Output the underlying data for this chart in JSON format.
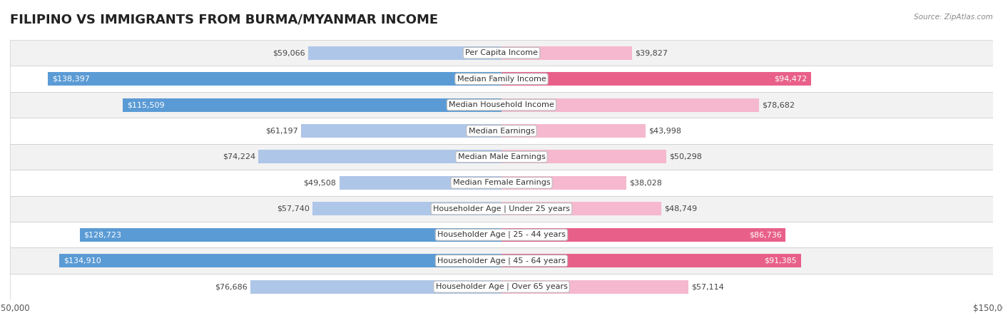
{
  "title": "FILIPINO VS IMMIGRANTS FROM BURMA/MYANMAR INCOME",
  "source": "Source: ZipAtlas.com",
  "categories": [
    "Per Capita Income",
    "Median Family Income",
    "Median Household Income",
    "Median Earnings",
    "Median Male Earnings",
    "Median Female Earnings",
    "Householder Age | Under 25 years",
    "Householder Age | 25 - 44 years",
    "Householder Age | 45 - 64 years",
    "Householder Age | Over 65 years"
  ],
  "filipino_values": [
    59066,
    138397,
    115509,
    61197,
    74224,
    49508,
    57740,
    128723,
    134910,
    76686
  ],
  "burma_values": [
    39827,
    94472,
    78682,
    43998,
    50298,
    38028,
    48749,
    86736,
    91385,
    57114
  ],
  "filipino_labels": [
    "$59,066",
    "$138,397",
    "$115,509",
    "$61,197",
    "$74,224",
    "$49,508",
    "$57,740",
    "$128,723",
    "$134,910",
    "$76,686"
  ],
  "burma_labels": [
    "$39,827",
    "$94,472",
    "$78,682",
    "$43,998",
    "$50,298",
    "$38,028",
    "$48,749",
    "$86,736",
    "$91,385",
    "$57,114"
  ],
  "max_value": 150000,
  "filipino_color_light": "#aec6e8",
  "filipino_color_dark": "#5b9bd5",
  "burma_color_light": "#f5b8cf",
  "burma_color_dark": "#e8608a",
  "row_bg_even": "#f2f2f2",
  "row_bg_odd": "#ffffff",
  "row_border": "#cccccc",
  "fil_inside_threshold": 110000,
  "bur_inside_threshold": 85000,
  "title_fontsize": 13,
  "label_fontsize": 8.0,
  "category_fontsize": 8.0,
  "legend_fontsize": 9,
  "bar_height": 0.52,
  "fig_width": 14.06,
  "fig_height": 4.67,
  "dpi": 100
}
